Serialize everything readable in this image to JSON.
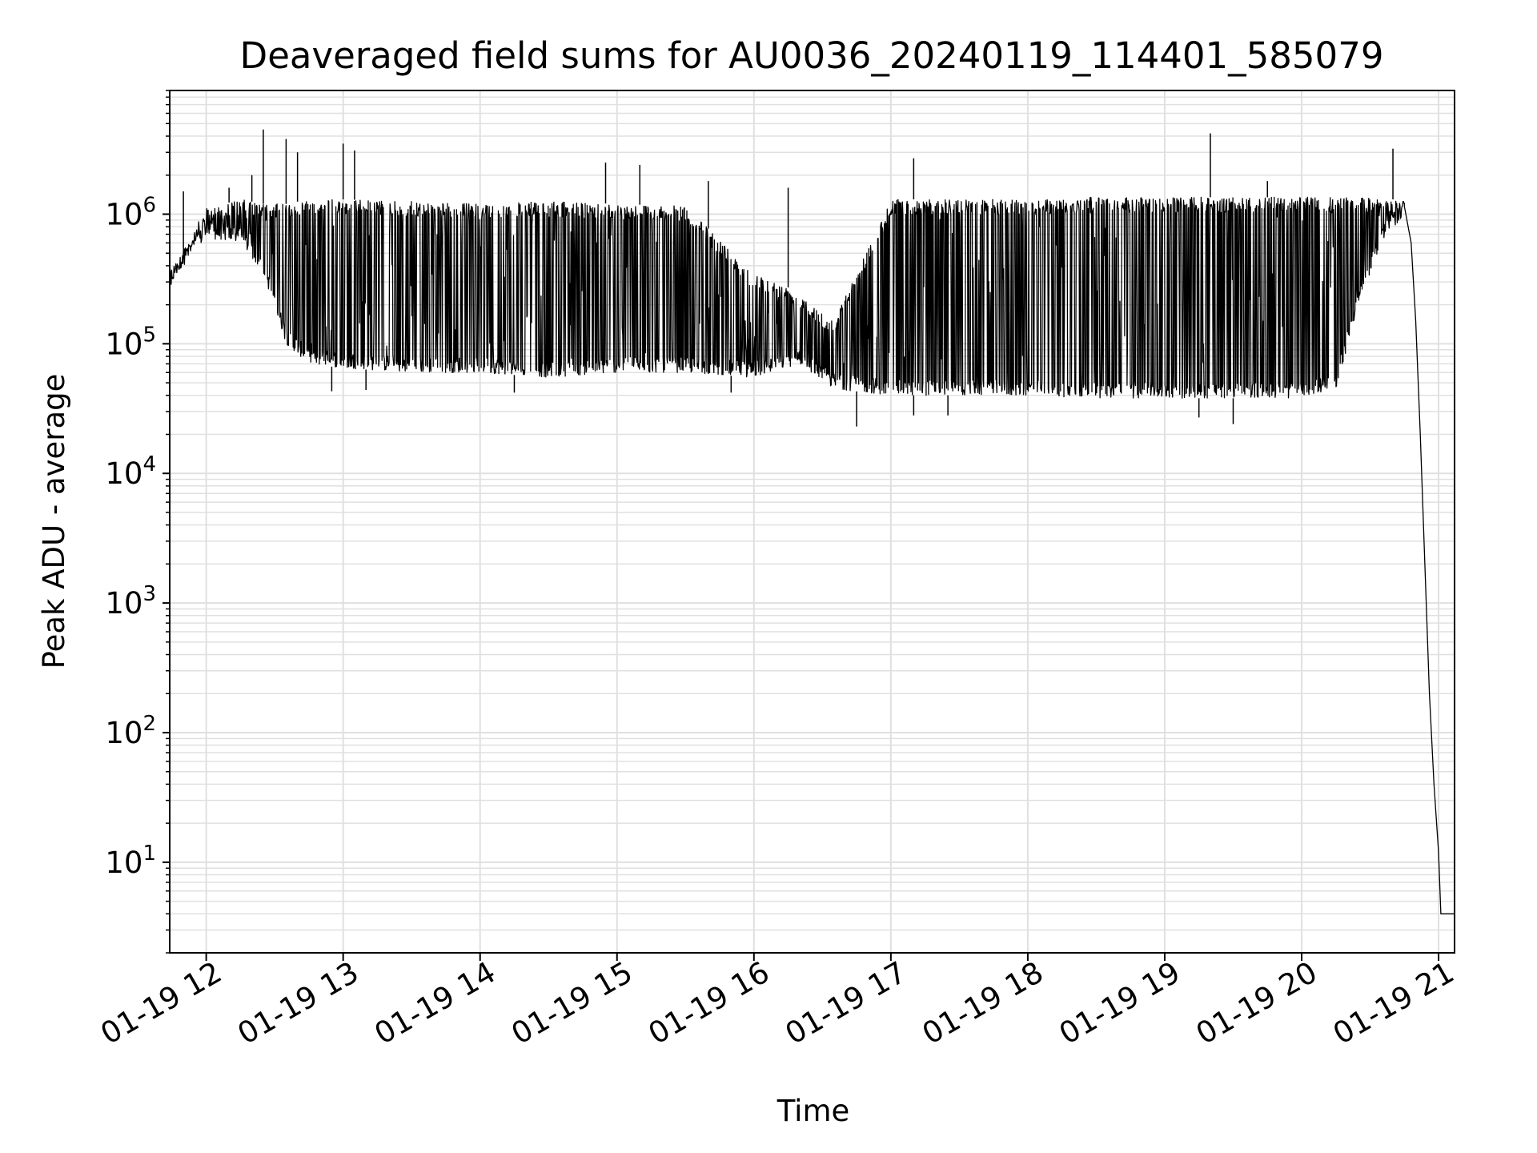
{
  "chart_data": {
    "type": "line",
    "title": "Deaveraged field sums for AU0036_20240119_114401_585079",
    "xlabel": "Time",
    "ylabel": "Peak ADU - average",
    "yscale": "log",
    "xlim": [
      "2024-01-19 11:44",
      "2024-01-19 21:07"
    ],
    "ylim": [
      2,
      9000000
    ],
    "grid": true,
    "legend": "none",
    "line_color": "#000000",
    "grid_color": "#e0e0e0",
    "x_ticks": [
      {
        "value": "2024-01-19 12:00",
        "label": "01-19 12"
      },
      {
        "value": "2024-01-19 13:00",
        "label": "01-19 13"
      },
      {
        "value": "2024-01-19 14:00",
        "label": "01-19 14"
      },
      {
        "value": "2024-01-19 15:00",
        "label": "01-19 15"
      },
      {
        "value": "2024-01-19 16:00",
        "label": "01-19 16"
      },
      {
        "value": "2024-01-19 17:00",
        "label": "01-19 17"
      },
      {
        "value": "2024-01-19 18:00",
        "label": "01-19 18"
      },
      {
        "value": "2024-01-19 19:00",
        "label": "01-19 19"
      },
      {
        "value": "2024-01-19 20:00",
        "label": "01-19 20"
      },
      {
        "value": "2024-01-19 21:00",
        "label": "01-19 21"
      }
    ],
    "y_ticks": [
      {
        "value": 10,
        "base": "10",
        "exp": "1"
      },
      {
        "value": 100,
        "base": "10",
        "exp": "2"
      },
      {
        "value": 1000,
        "base": "10",
        "exp": "3"
      },
      {
        "value": 10000,
        "base": "10",
        "exp": "4"
      },
      {
        "value": 100000,
        "base": "10",
        "exp": "5"
      },
      {
        "value": 1000000,
        "base": "10",
        "exp": "6"
      }
    ],
    "series": [
      {
        "envelope": [
          {
            "t": "2024-01-19 11:44",
            "high": 350000,
            "low": 280000
          },
          {
            "t": "2024-01-19 11:50",
            "high": 550000,
            "low": 400000
          },
          {
            "t": "2024-01-19 12:00",
            "high": 1100000,
            "low": 650000
          },
          {
            "t": "2024-01-19 12:15",
            "high": 1300000,
            "low": 600000
          },
          {
            "t": "2024-01-19 12:25",
            "high": 1200000,
            "low": 350000
          },
          {
            "t": "2024-01-19 12:35",
            "high": 1200000,
            "low": 100000
          },
          {
            "t": "2024-01-19 12:45",
            "high": 1300000,
            "low": 70000
          },
          {
            "t": "2024-01-19 13:00",
            "high": 1300000,
            "low": 65000
          },
          {
            "t": "2024-01-19 13:30",
            "high": 1250000,
            "low": 60000
          },
          {
            "t": "2024-01-19 14:00",
            "high": 1200000,
            "low": 60000
          },
          {
            "t": "2024-01-19 14:30",
            "high": 1250000,
            "low": 55000
          },
          {
            "t": "2024-01-19 15:00",
            "high": 1200000,
            "low": 60000
          },
          {
            "t": "2024-01-19 15:30",
            "high": 1150000,
            "low": 60000
          },
          {
            "t": "2024-01-19 16:00",
            "high": 350000,
            "low": 55000
          },
          {
            "t": "2024-01-19 16:20",
            "high": 250000,
            "low": 70000
          },
          {
            "t": "2024-01-19 16:35",
            "high": 150000,
            "low": 45000
          },
          {
            "t": "2024-01-19 17:00",
            "high": 1300000,
            "low": 40000
          },
          {
            "t": "2024-01-19 17:30",
            "high": 1300000,
            "low": 40000
          },
          {
            "t": "2024-01-19 18:00",
            "high": 1300000,
            "low": 40000
          },
          {
            "t": "2024-01-19 18:30",
            "high": 1350000,
            "low": 38000
          },
          {
            "t": "2024-01-19 19:00",
            "high": 1350000,
            "low": 38000
          },
          {
            "t": "2024-01-19 19:30",
            "high": 1350000,
            "low": 38000
          },
          {
            "t": "2024-01-19 20:00",
            "high": 1350000,
            "low": 38000
          },
          {
            "t": "2024-01-19 20:15",
            "high": 1350000,
            "low": 45000
          },
          {
            "t": "2024-01-19 20:25",
            "high": 1350000,
            "low": 200000
          },
          {
            "t": "2024-01-19 20:35",
            "high": 1300000,
            "low": 600000
          },
          {
            "t": "2024-01-19 20:45",
            "high": 1300000,
            "low": 1000000
          }
        ],
        "decay": [
          {
            "t": "2024-01-19 20:45",
            "y": 1150000
          },
          {
            "t": "2024-01-19 20:48",
            "y": 600000
          },
          {
            "t": "2024-01-19 20:50",
            "y": 150000
          },
          {
            "t": "2024-01-19 20:52",
            "y": 20000
          },
          {
            "t": "2024-01-19 20:54",
            "y": 2000
          },
          {
            "t": "2024-01-19 20:56",
            "y": 200
          },
          {
            "t": "2024-01-19 20:58",
            "y": 40
          },
          {
            "t": "2024-01-19 21:00",
            "y": 12
          },
          {
            "t": "2024-01-19 21:01",
            "y": 4
          },
          {
            "t": "2024-01-19 21:07",
            "y": 4
          }
        ],
        "spikes": [
          {
            "t": "2024-01-19 11:50",
            "y": 1500000
          },
          {
            "t": "2024-01-19 12:10",
            "y": 1600000
          },
          {
            "t": "2024-01-19 12:20",
            "y": 2000000
          },
          {
            "t": "2024-01-19 12:25",
            "y": 4500000
          },
          {
            "t": "2024-01-19 12:35",
            "y": 3800000
          },
          {
            "t": "2024-01-19 12:40",
            "y": 3000000
          },
          {
            "t": "2024-01-19 13:00",
            "y": 3500000
          },
          {
            "t": "2024-01-19 13:05",
            "y": 3100000
          },
          {
            "t": "2024-01-19 14:55",
            "y": 2500000
          },
          {
            "t": "2024-01-19 15:10",
            "y": 2400000
          },
          {
            "t": "2024-01-19 15:40",
            "y": 1800000
          },
          {
            "t": "2024-01-19 16:15",
            "y": 1600000
          },
          {
            "t": "2024-01-19 17:10",
            "y": 2700000
          },
          {
            "t": "2024-01-19 19:20",
            "y": 4200000
          },
          {
            "t": "2024-01-19 19:45",
            "y": 1800000
          },
          {
            "t": "2024-01-19 20:40",
            "y": 3200000
          }
        ],
        "dips": [
          {
            "t": "2024-01-19 12:55",
            "y": 43000
          },
          {
            "t": "2024-01-19 13:10",
            "y": 44000
          },
          {
            "t": "2024-01-19 14:15",
            "y": 42000
          },
          {
            "t": "2024-01-19 15:50",
            "y": 42000
          },
          {
            "t": "2024-01-19 16:45",
            "y": 23000
          },
          {
            "t": "2024-01-19 17:10",
            "y": 28000
          },
          {
            "t": "2024-01-19 17:25",
            "y": 28000
          },
          {
            "t": "2024-01-19 19:15",
            "y": 27000
          },
          {
            "t": "2024-01-19 19:30",
            "y": 24000
          }
        ]
      }
    ]
  }
}
